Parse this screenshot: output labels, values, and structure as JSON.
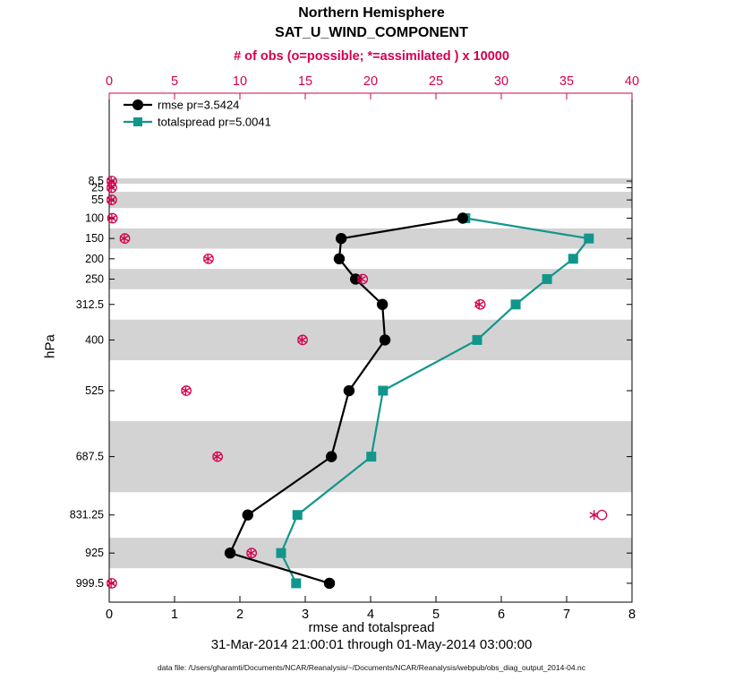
{
  "titles": {
    "line1": "Northern Hemisphere",
    "line2": "SAT_U_WIND_COMPONENT",
    "obs_axis_label": "# of obs (o=possible; *=assimilated ) x 10000"
  },
  "ylabel": "hPa",
  "footer": {
    "xlabel": "rmse and totalspread",
    "date_range": "31-Mar-2014 21:00:01 through 01-May-2014 03:00:00",
    "data_file": "data file: /Users/gharamti/Documents/NCAR/Reanalysis/~/Documents/NCAR/Reanalysis/webpub/obs_diag_output_2014-04.nc"
  },
  "colors": {
    "crimson": "#d5004f",
    "teal": "#12968b",
    "black": "#000000",
    "band": "#d3d3d3"
  },
  "chart_data": {
    "type": "line",
    "title": "Northern Hemisphere SAT_U_WIND_COMPONENT",
    "y_axis": {
      "label": "hPa",
      "min": -208,
      "max": 1046,
      "direction": "pressure-increasing-downward",
      "levels": [
        8.5,
        25,
        55,
        100,
        150,
        200,
        250,
        312.5,
        400,
        525,
        687.5,
        831.25,
        925,
        999.5
      ],
      "level_labels": [
        "8.5",
        "25",
        "55",
        "100",
        "150",
        "200",
        "250",
        "312.5",
        "400",
        "525",
        "687.5",
        "831.25",
        "925",
        "999.5"
      ]
    },
    "x_bottom": {
      "label": "rmse and totalspread",
      "min": 0,
      "max": 8,
      "ticks": [
        0,
        1,
        2,
        3,
        4,
        5,
        6,
        7,
        8
      ]
    },
    "x_top": {
      "label": "# of obs (o=possible; *=assimilated ) x 10000",
      "min": 0,
      "max": 40,
      "ticks": [
        0,
        5,
        10,
        15,
        20,
        25,
        30,
        35,
        40
      ]
    },
    "shaded_bands": [
      [
        2,
        15
      ],
      [
        35,
        75
      ],
      [
        125,
        175
      ],
      [
        225,
        275
      ],
      [
        350,
        450
      ],
      [
        600,
        775
      ],
      [
        887.5,
        962.5
      ]
    ],
    "series": [
      {
        "name": "rmse pr=3.5424",
        "color": "#000000",
        "marker": "circle",
        "points": [
          {
            "level": 100,
            "value": 5.41
          },
          {
            "level": 150,
            "value": 3.55
          },
          {
            "level": 200,
            "value": 3.52
          },
          {
            "level": 250,
            "value": 3.77
          },
          {
            "level": 312.5,
            "value": 4.18
          },
          {
            "level": 400,
            "value": 4.22
          },
          {
            "level": 525,
            "value": 3.67
          },
          {
            "level": 687.5,
            "value": 3.4
          },
          {
            "level": 831.25,
            "value": 2.12
          },
          {
            "level": 925,
            "value": 1.85
          },
          {
            "level": 999.5,
            "value": 3.37
          }
        ]
      },
      {
        "name": "totalspread pr=5.0041",
        "color": "#12968b",
        "marker": "square",
        "points": [
          {
            "level": 100,
            "value": 5.45
          },
          {
            "level": 150,
            "value": 7.34
          },
          {
            "level": 200,
            "value": 7.1
          },
          {
            "level": 250,
            "value": 6.7
          },
          {
            "level": 312.5,
            "value": 6.22
          },
          {
            "level": 400,
            "value": 5.63
          },
          {
            "level": 525,
            "value": 4.19
          },
          {
            "level": 687.5,
            "value": 4.01
          },
          {
            "level": 831.25,
            "value": 2.88
          },
          {
            "level": 925,
            "value": 2.63
          },
          {
            "level": 999.5,
            "value": 2.86
          }
        ]
      }
    ],
    "obs_counts": {
      "units": "x 10000",
      "levels": [
        8.5,
        25,
        55,
        100,
        150,
        200,
        250,
        312.5,
        400,
        525,
        687.5,
        831.25,
        925,
        999.5
      ],
      "possible": [
        0.2,
        0.2,
        0.2,
        0.25,
        1.2,
        7.6,
        19.4,
        28.4,
        14.8,
        5.9,
        8.3,
        37.7,
        10.9,
        0.2
      ],
      "assimilated": [
        0.15,
        0.15,
        0.15,
        0.2,
        1.15,
        7.55,
        19.3,
        28.3,
        14.75,
        5.85,
        8.25,
        37.1,
        10.85,
        0.15
      ]
    },
    "legend": {
      "position": "top-left",
      "entries": [
        "rmse pr=3.5424",
        "totalspread pr=5.0041"
      ]
    }
  }
}
